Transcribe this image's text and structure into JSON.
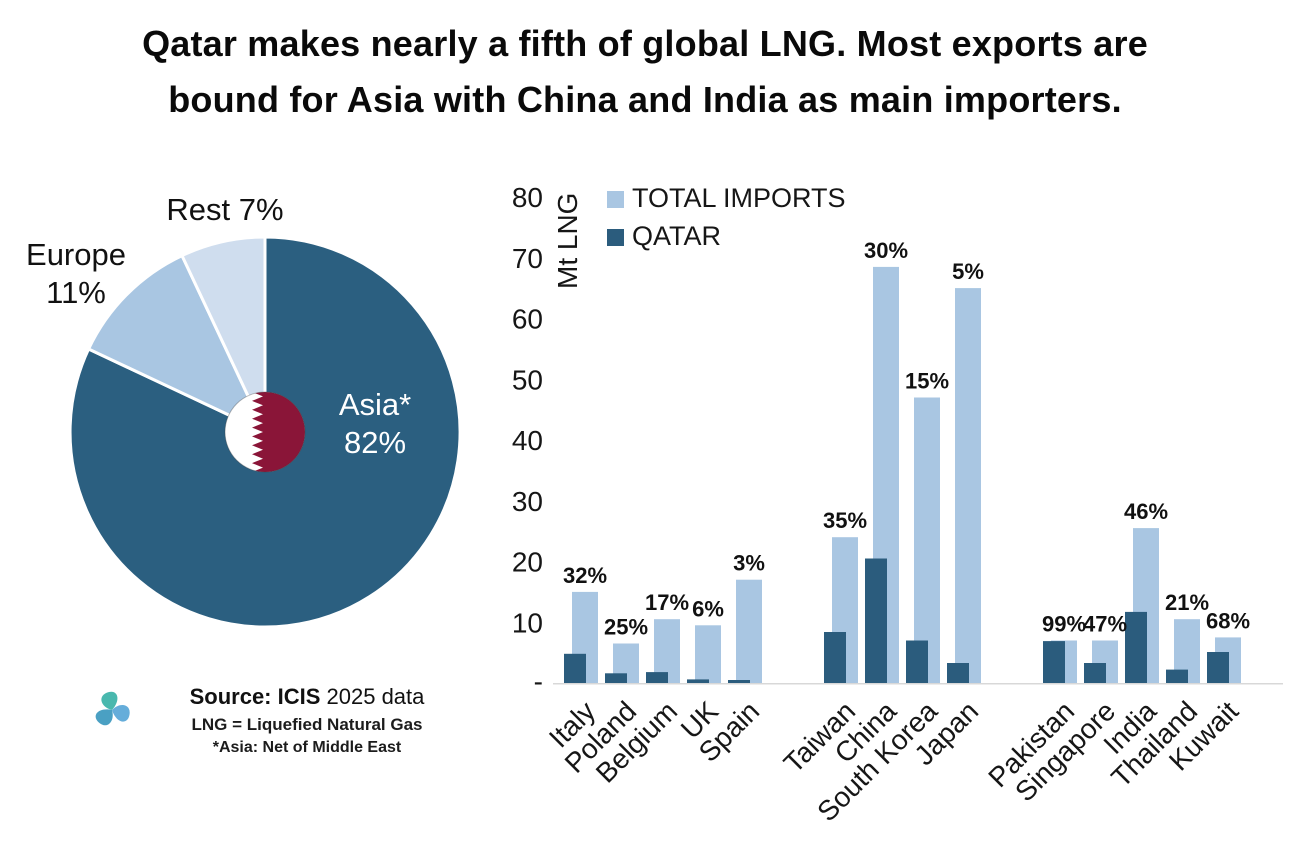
{
  "title": {
    "line1": "Qatar makes nearly a fifth of global LNG. Most exports are",
    "line2": "bound for Asia with China and India as main importers."
  },
  "colors": {
    "qatar_dark": "#2b5c7d",
    "imports_light": "#a9c6e2",
    "asia_slice": "#2b5f80",
    "europe_slice": "#a9c6e2",
    "rest_slice": "#cfddee",
    "flag_maroon": "#8a1538",
    "flag_white": "#ffffff",
    "text_dark": "#161616",
    "logo_teal": "#35b0a5",
    "background": "#ffffff"
  },
  "chart_data": [
    {
      "type": "pie",
      "slices": [
        {
          "label": "Asia*",
          "value": 82,
          "display_lines": [
            "Asia*",
            "82%"
          ],
          "color": "#2b5f80",
          "label_color": "#ffffff"
        },
        {
          "label": "Europe",
          "value": 11,
          "display_lines": [
            "Europe",
            "11%"
          ],
          "color": "#a9c6e2",
          "label_color": "#111111"
        },
        {
          "label": "Rest",
          "value": 7,
          "display_lines": [
            "Rest 7%"
          ],
          "color": "#cfddee",
          "label_color": "#111111"
        }
      ],
      "center_icon": "qatar-flag"
    },
    {
      "type": "bar",
      "categories": [
        "Italy",
        "Poland",
        "Belgium",
        "UK",
        "Spain",
        "Taiwan",
        "China",
        "South Korea",
        "Japan",
        "Pakistan",
        "Singapore",
        "India",
        "Thailand",
        "Kuwait"
      ],
      "series": [
        {
          "name": "TOTAL IMPORTS",
          "color": "#a9c6e2",
          "values": [
            15,
            6.5,
            10.5,
            9.5,
            17,
            24,
            68.5,
            47,
            65,
            7,
            7,
            25.5,
            10.5,
            7.5
          ]
        },
        {
          "name": "QATAR",
          "color": "#2b5c7d",
          "values": [
            4.8,
            1.6,
            1.8,
            0.6,
            0.5,
            8.4,
            20.5,
            7,
            3.3,
            6.9,
            3.3,
            11.7,
            2.2,
            5.1
          ]
        }
      ],
      "pct_labels": [
        "32%",
        "25%",
        "17%",
        "6%",
        "3%",
        "35%",
        "30%",
        "15%",
        "5%",
        "99%",
        "47%",
        "46%",
        "21%",
        "68%"
      ],
      "ylabel": "Mt LNG",
      "ylim": [
        0,
        80
      ],
      "yticks": [
        80,
        70,
        60,
        50,
        40,
        30,
        20,
        10
      ],
      "zero_tick_label": "-",
      "grid": false,
      "legend_position": "top-left",
      "group_breaks_after": [
        4,
        8
      ]
    }
  ],
  "source": {
    "line1_bold": "Source: ICIS",
    "line1_rest": " 2025 data",
    "line2": "LNG = Liquefied Natural Gas",
    "line3": "*Asia: Net of Middle East"
  }
}
